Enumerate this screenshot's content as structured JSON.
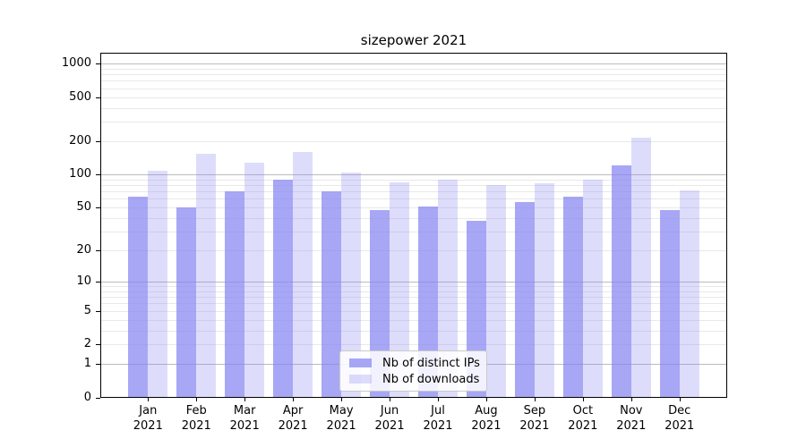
{
  "chart_data": {
    "type": "bar",
    "title": "sizepower 2021",
    "categories": [
      "Jan",
      "Feb",
      "Mar",
      "Apr",
      "May",
      "Jun",
      "Jul",
      "Aug",
      "Sep",
      "Oct",
      "Nov",
      "Dec"
    ],
    "category_year": "2021",
    "series": [
      {
        "name": "Nb of distinct IPs",
        "fill": "rgba(133,133,242,0.72)",
        "values": [
          63,
          50,
          70,
          89,
          70,
          47,
          51,
          38,
          56,
          63,
          120,
          47
        ]
      },
      {
        "name": "Nb of downloads",
        "fill": "rgba(133,133,242,0.28)",
        "values": [
          109,
          153,
          129,
          160,
          105,
          85,
          90,
          80,
          83,
          89,
          215,
          72
        ]
      }
    ],
    "yscale": "log1p",
    "ylim": [
      0,
      1200
    ],
    "ytick_labels": [
      0,
      1,
      2,
      5,
      10,
      20,
      50,
      100,
      200,
      500,
      1000
    ],
    "major_gridline_values": [
      1,
      10,
      100,
      1000
    ],
    "grid": "on",
    "legend_position": "lower center",
    "colors": {
      "bar_base": "#8585f2",
      "major_grid": "#bcbcbc",
      "minor_grid": "#e9e9e9",
      "spine": "#000000",
      "background": "#ffffff"
    }
  }
}
